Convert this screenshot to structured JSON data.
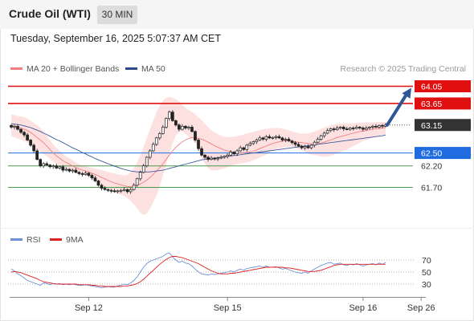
{
  "header": {
    "title": "Crude Oil (WTI)",
    "timeframe": "30 MIN",
    "datetime": "Tuesday, September 16, 2025 5:07:37 AM CET"
  },
  "legend": {
    "items": [
      {
        "label": "MA 20 + Bollinger Bands",
        "color": "#f08080"
      },
      {
        "label": "MA 50",
        "color": "#2a4a8a"
      }
    ],
    "copyright": "Research © 2025 Trading Central"
  },
  "rsi_legend": {
    "items": [
      {
        "label": "RSI",
        "color": "#6f8fd8"
      },
      {
        "label": "9MA",
        "color": "#dd2222"
      }
    ]
  },
  "chart_data": {
    "type": "candlestick",
    "ylim": [
      61.4,
      64.2
    ],
    "levels": [
      {
        "value": 64.05,
        "label": "64.05",
        "color": "#e01010",
        "kind": "resistance"
      },
      {
        "value": 63.65,
        "label": "63.65",
        "color": "#e01010",
        "kind": "resistance"
      },
      {
        "value": 63.15,
        "label": "63.15",
        "color": "#333333",
        "kind": "current"
      },
      {
        "value": 62.5,
        "label": "62.50",
        "color": "#1f6ce0",
        "kind": "pivot"
      },
      {
        "value": 62.2,
        "label": "62.20",
        "color": "#4a9a4a",
        "kind": "support"
      },
      {
        "value": 61.7,
        "label": "61.70",
        "color": "#4a9a4a",
        "kind": "support"
      }
    ],
    "close": [
      63.1,
      63.12,
      63.05,
      62.98,
      62.92,
      62.8,
      62.68,
      62.55,
      62.35,
      62.2,
      62.25,
      62.22,
      62.18,
      62.2,
      62.15,
      62.18,
      62.1,
      62.12,
      62.08,
      62.1,
      62.05,
      62.02,
      62.0,
      62.03,
      61.98,
      61.92,
      61.85,
      61.75,
      61.68,
      61.65,
      61.63,
      61.62,
      61.6,
      61.62,
      61.63,
      61.65,
      61.6,
      61.65,
      61.75,
      61.9,
      62.05,
      62.2,
      62.4,
      62.55,
      62.7,
      62.85,
      62.95,
      63.1,
      63.3,
      63.45,
      63.25,
      63.15,
      63.05,
      63.12,
      63.08,
      63.1,
      63.0,
      62.8,
      62.6,
      62.45,
      62.4,
      62.35,
      62.38,
      62.36,
      62.38,
      62.4,
      62.42,
      62.45,
      62.52,
      62.48,
      62.55,
      62.62,
      62.58,
      62.68,
      62.72,
      62.76,
      62.8,
      62.85,
      62.82,
      62.88,
      62.85,
      62.86,
      62.88,
      62.85,
      62.8,
      62.82,
      62.78,
      62.74,
      62.7,
      62.66,
      62.62,
      62.65,
      62.62,
      62.68,
      62.75,
      62.82,
      62.9,
      62.96,
      63.02,
      63.06,
      63.04,
      63.08,
      63.1,
      63.06,
      63.05,
      63.08,
      63.07,
      63.1,
      63.08,
      63.05,
      63.08,
      63.1,
      63.12,
      63.1,
      63.14,
      63.12,
      63.15
    ],
    "ma20": [
      63.15,
      63.12,
      63.1,
      63.08,
      63.05,
      63.02,
      62.98,
      62.92,
      62.86,
      62.8,
      62.74,
      62.66,
      62.58,
      62.5,
      62.43,
      62.38,
      62.32,
      62.28,
      62.24,
      62.2,
      62.16,
      62.13,
      62.1,
      62.08,
      62.06,
      62.03,
      62.0,
      61.97,
      61.93,
      61.9,
      61.86,
      61.83,
      61.8,
      61.78,
      61.76,
      61.74,
      61.72,
      61.72,
      61.73,
      61.75,
      61.78,
      61.82,
      61.87,
      61.93,
      62.0,
      62.08,
      62.16,
      62.25,
      62.35,
      62.45,
      62.55,
      62.63,
      62.7,
      62.76,
      62.8,
      62.84,
      62.86,
      62.86,
      62.84,
      62.82,
      62.79,
      62.75,
      62.71,
      62.67,
      62.63,
      62.6,
      62.57,
      62.55,
      62.53,
      62.51,
      62.5,
      62.5,
      62.5,
      62.51,
      62.52,
      62.54,
      62.57,
      62.6,
      62.63,
      62.66,
      62.69,
      62.72,
      62.74,
      62.76,
      62.77,
      62.78,
      62.78,
      62.77,
      62.76,
      62.75,
      62.74,
      62.73,
      62.72,
      62.71,
      62.71,
      62.72,
      62.73,
      62.75,
      62.78,
      62.8,
      62.83,
      62.86,
      62.88,
      62.9,
      62.92,
      62.94,
      62.96,
      62.98,
      63.0,
      63.01,
      63.02,
      63.04,
      63.05,
      63.06,
      63.07,
      63.08,
      63.09
    ],
    "ma50": [
      63.18,
      63.17,
      63.16,
      63.15,
      63.13,
      63.11,
      63.09,
      63.06,
      63.03,
      63.0,
      62.96,
      62.93,
      62.89,
      62.85,
      62.81,
      62.78,
      62.74,
      62.7,
      62.66,
      62.62,
      62.59,
      62.55,
      62.51,
      62.48,
      62.44,
      62.41,
      62.37,
      62.34,
      62.31,
      62.28,
      62.25,
      62.22,
      62.19,
      62.17,
      62.14,
      62.12,
      62.1,
      62.08,
      62.07,
      62.06,
      62.06,
      62.06,
      62.06,
      62.06,
      62.07,
      62.08,
      62.09,
      62.1,
      62.12,
      62.14,
      62.16,
      62.18,
      62.2,
      62.22,
      62.24,
      62.26,
      62.28,
      62.3,
      62.32,
      62.34,
      62.35,
      62.36,
      62.37,
      62.38,
      62.39,
      62.4,
      62.41,
      62.42,
      62.43,
      62.44,
      62.45,
      62.46,
      62.47,
      62.48,
      62.49,
      62.5,
      62.51,
      62.52,
      62.53,
      62.54,
      62.55,
      62.56,
      62.57,
      62.58,
      62.59,
      62.6,
      62.61,
      62.62,
      62.63,
      62.64,
      62.65,
      62.66,
      62.67,
      62.68,
      62.69,
      62.7,
      62.71,
      62.72,
      62.73,
      62.74,
      62.75,
      62.76,
      62.77,
      62.78,
      62.79,
      62.8,
      62.81,
      62.82,
      62.83,
      62.84,
      62.85,
      62.86,
      62.87,
      62.88,
      62.89,
      62.9,
      62.92
    ],
    "bb_upper": [
      63.4,
      63.38,
      63.36,
      63.35,
      63.33,
      63.3,
      63.25,
      63.2,
      63.15,
      63.08,
      63.0,
      62.9,
      62.8,
      62.7,
      62.62,
      62.55,
      62.48,
      62.42,
      62.38,
      62.33,
      62.28,
      62.24,
      62.21,
      62.19,
      62.17,
      62.15,
      62.14,
      62.12,
      62.1,
      62.08,
      62.06,
      62.04,
      62.02,
      62.0,
      61.99,
      61.98,
      61.99,
      62.05,
      62.15,
      62.28,
      62.45,
      62.65,
      62.85,
      63.05,
      63.25,
      63.45,
      63.6,
      63.72,
      63.78,
      63.8,
      63.78,
      63.75,
      63.7,
      63.62,
      63.55,
      63.5,
      63.45,
      63.4,
      63.33,
      63.26,
      63.18,
      63.1,
      63.03,
      62.98,
      62.94,
      62.9,
      62.88,
      62.87,
      62.87,
      62.88,
      62.89,
      62.91,
      62.93,
      62.95,
      62.97,
      62.99,
      63.01,
      63.03,
      63.05,
      63.06,
      63.07,
      63.08,
      63.08,
      63.08,
      63.07,
      63.05,
      63.03,
      63.0,
      62.98,
      62.96,
      62.95,
      62.95,
      62.96,
      62.98,
      63.0,
      63.03,
      63.06,
      63.09,
      63.12,
      63.14,
      63.16,
      63.17,
      63.18,
      63.19,
      63.19,
      63.19,
      63.19,
      63.2,
      63.2,
      63.2,
      63.21,
      63.21,
      63.21,
      63.22,
      63.22,
      63.22,
      63.22
    ],
    "bb_lower": [
      62.9,
      62.86,
      62.84,
      62.81,
      62.77,
      62.74,
      62.71,
      62.64,
      62.57,
      62.52,
      62.48,
      62.42,
      62.36,
      62.3,
      62.24,
      62.21,
      62.16,
      62.14,
      62.1,
      62.07,
      62.04,
      62.02,
      61.99,
      61.97,
      61.95,
      61.91,
      61.86,
      61.82,
      61.76,
      61.72,
      61.66,
      61.62,
      61.58,
      61.56,
      61.53,
      61.5,
      61.45,
      61.39,
      61.31,
      61.22,
      61.11,
      61.06,
      61.09,
      61.21,
      61.35,
      61.51,
      61.72,
      61.98,
      62.22,
      62.5,
      62.72,
      62.91,
      63.0,
      63.0,
      62.95,
      62.88,
      62.82,
      62.72,
      62.55,
      62.38,
      62.25,
      62.15,
      62.1,
      62.09,
      62.1,
      62.12,
      62.14,
      62.17,
      62.2,
      62.22,
      62.24,
      62.25,
      62.27,
      62.28,
      62.3,
      62.33,
      62.36,
      62.4,
      62.43,
      62.46,
      62.51,
      62.55,
      62.58,
      62.61,
      62.62,
      62.64,
      62.64,
      62.63,
      62.61,
      62.59,
      62.56,
      62.53,
      62.49,
      62.46,
      62.45,
      62.44,
      62.42,
      62.41,
      62.42,
      62.43,
      62.46,
      62.49,
      62.52,
      62.55,
      62.58,
      62.62,
      62.66,
      62.7,
      62.74,
      62.78,
      62.8,
      62.83,
      62.86,
      62.88,
      62.9,
      62.92,
      62.94
    ],
    "forecast_arrow": {
      "from": 63.15,
      "to": 64.05
    },
    "x_ticks": [
      {
        "index": 24,
        "label": "Sep 12"
      },
      {
        "index": 67,
        "label": "Sep 15"
      },
      {
        "index": 109,
        "label": "Sep 16"
      },
      {
        "index": 127,
        "label": "Sep 26"
      }
    ],
    "rsi": {
      "ylim": [
        10,
        90
      ],
      "levels": [
        70,
        50,
        30
      ],
      "level_labels": [
        "70",
        "50",
        "30"
      ],
      "rsi": [
        55,
        52,
        47,
        44,
        40,
        36,
        34,
        32,
        30,
        28,
        32,
        31,
        29,
        31,
        30,
        31,
        29,
        30,
        29,
        30,
        29,
        28,
        28,
        29,
        28,
        27,
        26,
        25,
        24,
        25,
        26,
        25,
        25,
        27,
        28,
        30,
        29,
        32,
        36,
        42,
        50,
        58,
        64,
        68,
        70,
        72,
        74,
        76,
        80,
        82,
        75,
        70,
        66,
        68,
        65,
        64,
        60,
        55,
        50,
        47,
        46,
        45,
        47,
        46,
        47,
        48,
        49,
        50,
        52,
        50,
        53,
        55,
        53,
        56,
        57,
        58,
        59,
        60,
        58,
        60,
        58,
        58,
        59,
        57,
        55,
        56,
        54,
        52,
        50,
        49,
        48,
        50,
        48,
        52,
        55,
        58,
        61,
        63,
        65,
        66,
        63,
        64,
        65,
        62,
        61,
        63,
        62,
        64,
        62,
        60,
        62,
        63,
        64,
        62,
        65,
        63,
        66
      ],
      "ma9": [
        50,
        51,
        50,
        49,
        47,
        45,
        43,
        41,
        39,
        36,
        34,
        33,
        32,
        31,
        30,
        30,
        30,
        30,
        30,
        30,
        30,
        29,
        29,
        29,
        29,
        28,
        28,
        27,
        27,
        26,
        26,
        26,
        26,
        26,
        26,
        27,
        27,
        28,
        29,
        31,
        34,
        38,
        43,
        48,
        53,
        58,
        63,
        67,
        71,
        74,
        76,
        76,
        75,
        74,
        72,
        70,
        68,
        66,
        64,
        61,
        58,
        55,
        52,
        50,
        48,
        47,
        47,
        47,
        48,
        48,
        49,
        50,
        51,
        52,
        53,
        54,
        55,
        56,
        57,
        58,
        58,
        58,
        58,
        58,
        58,
        57,
        57,
        56,
        55,
        54,
        53,
        52,
        51,
        51,
        51,
        52,
        53,
        55,
        57,
        59,
        61,
        62,
        63,
        63,
        63,
        63,
        63,
        63,
        63,
        63,
        63,
        63,
        63,
        63,
        63,
        63,
        63
      ]
    }
  }
}
